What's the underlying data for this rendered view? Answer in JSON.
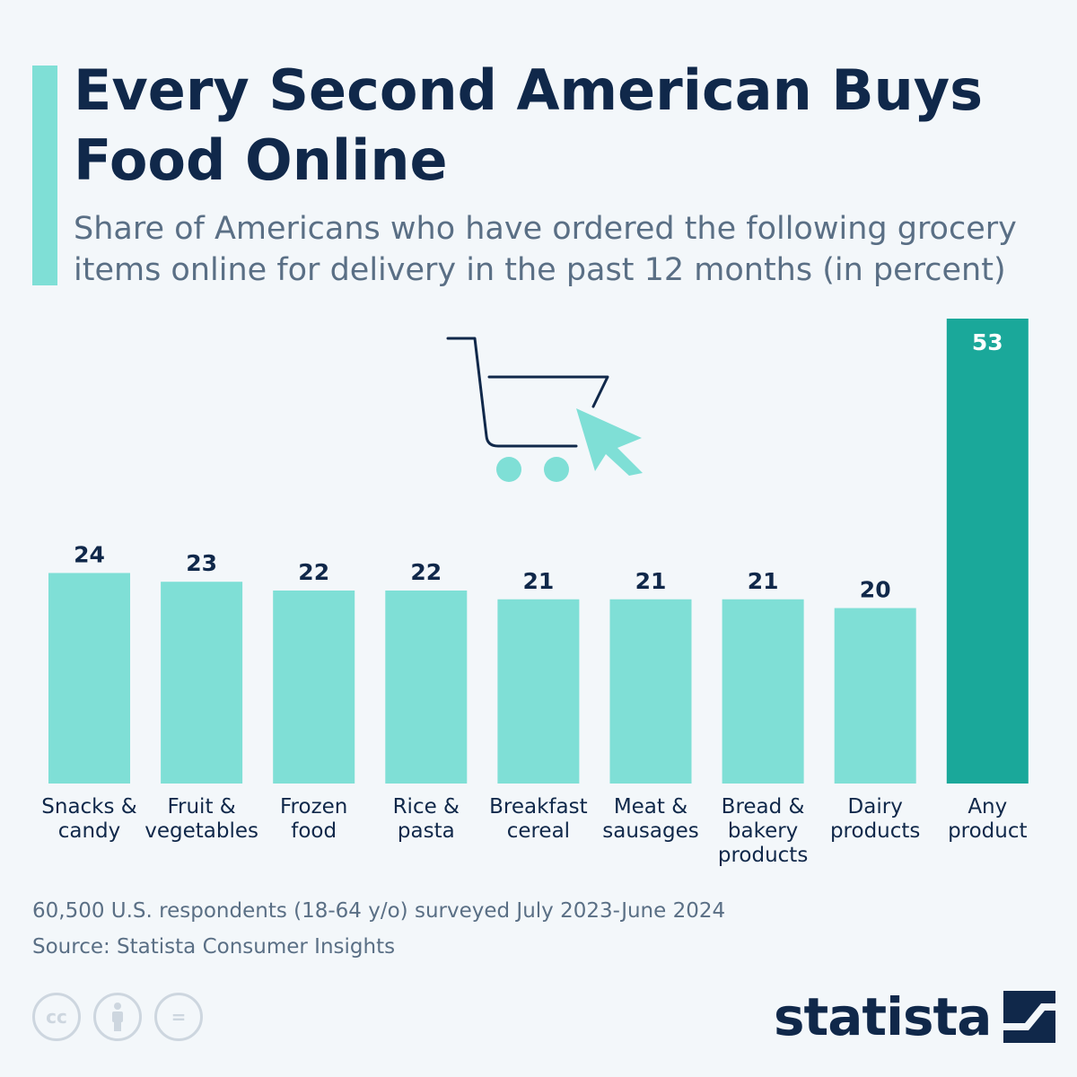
{
  "header": {
    "title": "Every Second American Buys Food Online",
    "subtitle": "Share of Americans who have ordered the following grocery items online for delivery in the past 12 months (in percent)"
  },
  "colors": {
    "accent": "#7fdfd6",
    "bar": "#7fdfd6",
    "highlight_bar": "#1aa89a",
    "text_dark": "#10284a",
    "text_muted": "#5a6f85"
  },
  "icons": [
    "shopping-cart-icon",
    "cursor-arrow-icon",
    "cc-icon",
    "attribution-icon",
    "no-derivatives-icon",
    "statista-logo-icon"
  ],
  "chart_data": {
    "type": "bar",
    "categories": [
      "Snacks & candy",
      "Fruit & vegetables",
      "Frozen food",
      "Rice & pasta",
      "Breakfast cereal",
      "Meat & sausages",
      "Bread & bakery products",
      "Dairy products",
      "Any product"
    ],
    "values": [
      24,
      23,
      22,
      22,
      21,
      21,
      21,
      20,
      53
    ],
    "value_labels": [
      "24",
      "23",
      "22",
      "22",
      "21",
      "21",
      "21",
      "20",
      "53"
    ],
    "highlight_index": 8,
    "ylim": [
      0,
      53
    ],
    "grid": false,
    "title": "Every Second American Buys Food Online",
    "xlabel": "",
    "ylabel": ""
  },
  "footer": {
    "note": "60,500 U.S. respondents (18-64 y/o) surveyed July 2023-June 2024",
    "source": "Source: Statista Consumer Insights",
    "cc_symbol": "cc",
    "nd_symbol": "=",
    "brand": "statista"
  }
}
